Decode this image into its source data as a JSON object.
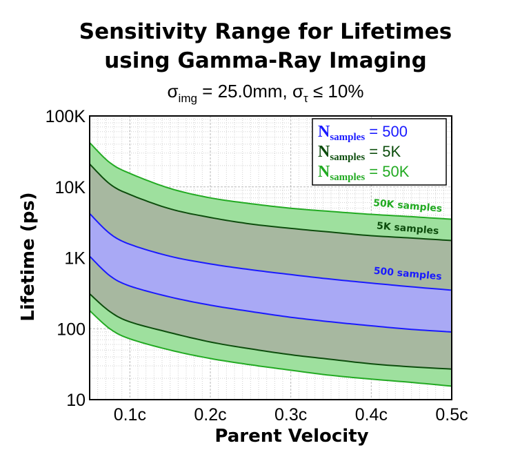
{
  "chart_data": {
    "type": "area",
    "title": "Sensitivity Range for Lifetimes",
    "title_line2": "using Gamma-Ray Imaging",
    "subtitle": {
      "sigma_img_symbol": "σ",
      "sigma_img_sub": "img",
      "sigma_img_value": " = 25.0mm,  ",
      "sigma_tau_symbol": "σ",
      "sigma_tau_sub": "τ",
      "sigma_tau_value": " ≤ 10%"
    },
    "xlabel": "Parent Velocity",
    "ylabel": "Lifetime (ps)",
    "xlim": [
      0.05,
      0.5
    ],
    "ylim": [
      10,
      100000
    ],
    "yscale": "log",
    "grid": true,
    "x_ticks": [
      {
        "value": 0.1,
        "label": "0.1c"
      },
      {
        "value": 0.2,
        "label": "0.2c"
      },
      {
        "value": 0.3,
        "label": "0.3c"
      },
      {
        "value": 0.4,
        "label": "0.4c"
      },
      {
        "value": 0.5,
        "label": "0.5c"
      }
    ],
    "y_ticks": [
      {
        "value": 10,
        "label": "10"
      },
      {
        "value": 100,
        "label": "100"
      },
      {
        "value": 1000,
        "label": "1K"
      },
      {
        "value": 10000,
        "label": "10K"
      },
      {
        "value": 100000,
        "label": "100K"
      }
    ],
    "legend": {
      "position": "top-right",
      "entries": [
        {
          "name": "N",
          "sub": "samples",
          "value": " = 500",
          "color": "#1a1aff"
        },
        {
          "name": "N",
          "sub": "samples",
          "value": " = 5K",
          "color": "#0d4d0d"
        },
        {
          "name": "N",
          "sub": "samples",
          "value": " = 50K",
          "color": "#22aa22"
        }
      ]
    },
    "series": [
      {
        "name": "50K samples",
        "fill": "#9ee09e",
        "line": "#22aa22",
        "annotation": "50K samples",
        "annotation_x": 0.445,
        "annotation_y": 4900,
        "upper": {
          "x": [
            0.05,
            0.075,
            0.1,
            0.15,
            0.2,
            0.25,
            0.3,
            0.35,
            0.4,
            0.45,
            0.5
          ],
          "y": [
            42000,
            22000,
            15500,
            9500,
            7000,
            5800,
            5000,
            4500,
            4100,
            3800,
            3500
          ]
        },
        "lower": {
          "x": [
            0.05,
            0.075,
            0.1,
            0.15,
            0.2,
            0.25,
            0.3,
            0.35,
            0.4,
            0.45,
            0.5
          ],
          "y": [
            180,
            100,
            72,
            50,
            38,
            31,
            26,
            22,
            19.5,
            17.5,
            15.5
          ]
        }
      },
      {
        "name": "5K samples",
        "fill": "#a7b8a0",
        "line": "#0d4d0d",
        "annotation": "5K samples",
        "annotation_x": 0.445,
        "annotation_y": 2350,
        "upper": {
          "x": [
            0.05,
            0.075,
            0.1,
            0.15,
            0.2,
            0.25,
            0.3,
            0.35,
            0.4,
            0.45,
            0.5
          ],
          "y": [
            21000,
            11000,
            7800,
            4900,
            3700,
            3000,
            2600,
            2300,
            2050,
            1900,
            1750
          ]
        },
        "lower": {
          "x": [
            0.05,
            0.075,
            0.1,
            0.15,
            0.2,
            0.25,
            0.3,
            0.35,
            0.4,
            0.45,
            0.5
          ],
          "y": [
            310,
            175,
            125,
            88,
            65,
            52,
            43,
            37,
            32,
            29,
            27
          ]
        }
      },
      {
        "name": "500 samples",
        "fill": "#a9a9f5",
        "line": "#1a1aff",
        "annotation": "500 samples",
        "annotation_x": 0.445,
        "annotation_y": 540,
        "upper": {
          "x": [
            0.05,
            0.075,
            0.1,
            0.15,
            0.2,
            0.25,
            0.3,
            0.35,
            0.4,
            0.45,
            0.5
          ],
          "y": [
            4200,
            2200,
            1550,
            1050,
            820,
            680,
            580,
            500,
            440,
            390,
            350
          ]
        },
        "lower": {
          "x": [
            0.05,
            0.075,
            0.1,
            0.15,
            0.2,
            0.25,
            0.3,
            0.35,
            0.4,
            0.45,
            0.5
          ],
          "y": [
            1050,
            560,
            400,
            280,
            215,
            175,
            145,
            125,
            110,
            98,
            90
          ]
        }
      }
    ]
  }
}
